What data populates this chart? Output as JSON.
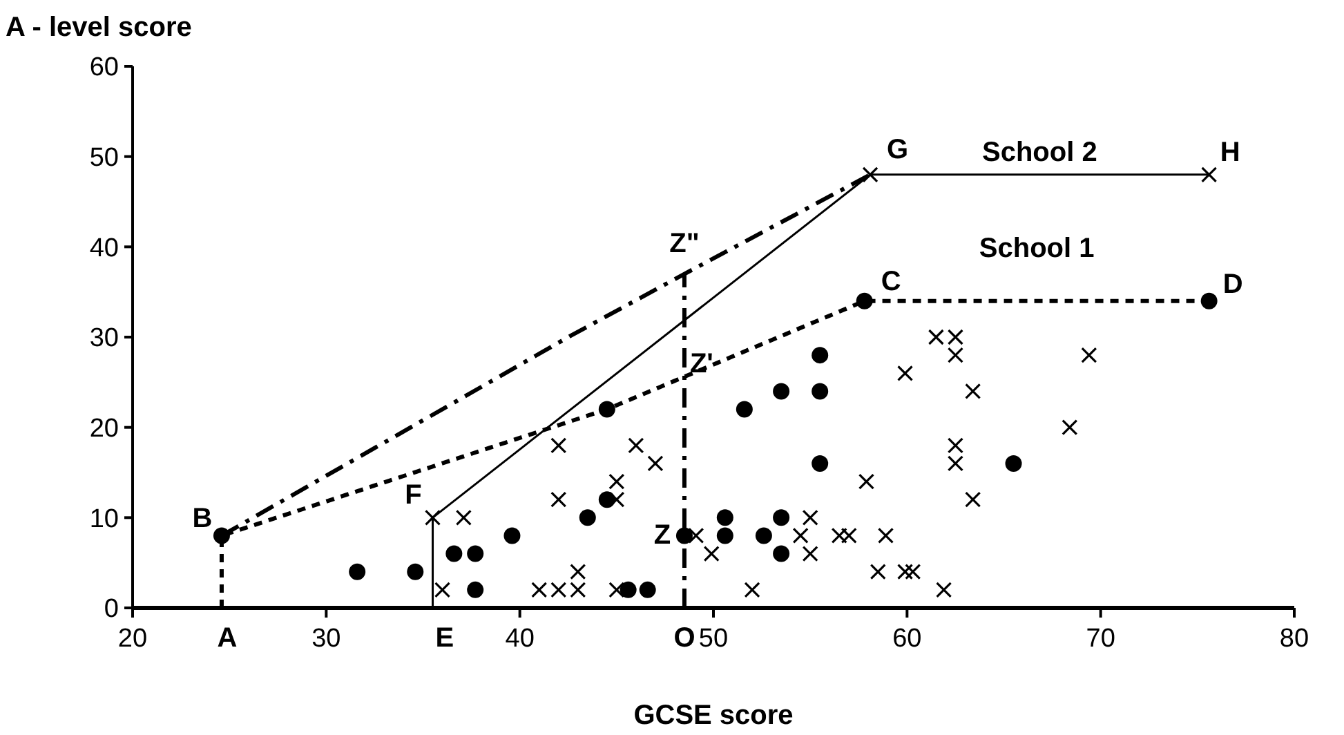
{
  "chart_data": {
    "type": "scatter",
    "xlabel": "GCSE score",
    "ylabel": "A - level score",
    "xlim": [
      20,
      80
    ],
    "xticks": [
      20,
      30,
      40,
      50,
      60,
      70,
      80
    ],
    "ylim": [
      0,
      60
    ],
    "yticks": [
      0,
      10,
      20,
      30,
      40,
      50,
      60
    ],
    "grid": false,
    "series": [
      {
        "marker": "circle",
        "color": "#000000",
        "x": [
          24.6,
          31.6,
          34.6,
          36.6,
          37.7,
          37.7,
          39.6,
          43.5,
          44.5,
          44.5,
          45.6,
          46.6,
          48.5,
          50.6,
          50.6,
          51.6,
          52.6,
          53.5,
          53.5,
          53.5,
          55.5,
          55.5,
          55.5,
          57.8,
          65.5,
          75.6
        ],
        "values": [
          8,
          4,
          4,
          6,
          6,
          2,
          8,
          10,
          12,
          22,
          2,
          2,
          8,
          10,
          8,
          22,
          8,
          10,
          6,
          24,
          24,
          16,
          28,
          34,
          16,
          34
        ]
      },
      {
        "marker": "cross",
        "color": "#000000",
        "x": [
          35.5,
          37.1,
          36,
          41,
          42,
          43,
          45,
          43,
          42,
          42,
          45,
          45,
          46,
          47,
          49.1,
          49.9,
          52,
          54.5,
          55,
          55,
          56.5,
          57,
          57.9,
          58.9,
          58.5,
          59.9,
          60.3,
          61.9,
          59.9,
          61.5,
          62.5,
          62.5,
          63.4,
          62.5,
          62.5,
          63.4,
          68.4,
          69.4,
          58.1,
          75.6
        ],
        "values": [
          10,
          10,
          2,
          2,
          2,
          2,
          2,
          4,
          12,
          18,
          12,
          14,
          18,
          16,
          8,
          6,
          2,
          8,
          10,
          6,
          8,
          8,
          14,
          8,
          4,
          4,
          4,
          2,
          26,
          30,
          30,
          28,
          24,
          18,
          16,
          12,
          20,
          28,
          48,
          48
        ]
      },
      {
        "type": "line",
        "name": "School 1",
        "line_style": "dotted",
        "color": "#000000",
        "x": [
          24.6,
          24.6,
          44.5,
          57.8,
          75.6
        ],
        "values": [
          0,
          8,
          22,
          34,
          34
        ]
      },
      {
        "type": "line",
        "name": "School 2",
        "line_style": "solid",
        "color": "#000000",
        "x": [
          35.5,
          35.5,
          58.1,
          75.6
        ],
        "values": [
          0,
          10,
          48,
          48
        ]
      },
      {
        "type": "line",
        "line_style": "dashed",
        "color": "#000000",
        "x": [
          24.6,
          42.5,
          48.5,
          58.1
        ],
        "values": [
          8,
          30,
          37,
          48
        ]
      },
      {
        "type": "line",
        "line_style": "dashed",
        "color": "#000000",
        "x": [
          48.5,
          48.5
        ],
        "values": [
          0,
          37
        ]
      }
    ],
    "annotations": [
      {
        "text": "A",
        "x": 24.6,
        "y": 0
      },
      {
        "text": "B",
        "x": 24.6,
        "y": 8
      },
      {
        "text": "C",
        "x": 57.8,
        "y": 34
      },
      {
        "text": "D",
        "x": 75.6,
        "y": 34
      },
      {
        "text": "E",
        "x": 35.5,
        "y": 0
      },
      {
        "text": "F",
        "x": 35.5,
        "y": 10
      },
      {
        "text": "G",
        "x": 58.1,
        "y": 48
      },
      {
        "text": "H",
        "x": 75.6,
        "y": 48
      },
      {
        "text": "O",
        "x": 48.5,
        "y": 0
      },
      {
        "text": "Z",
        "x": 48.5,
        "y": 8
      },
      {
        "text": "Z'",
        "x": 48.5,
        "y": 27
      },
      {
        "text": "Z\"",
        "x": 48.5,
        "y": 37
      }
    ]
  }
}
